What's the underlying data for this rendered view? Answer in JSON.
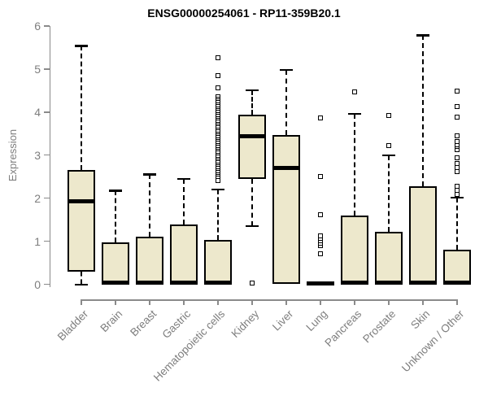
{
  "chart_data": {
    "type": "box",
    "title": "ENSG00000254061 - RP11-359B20.1",
    "ylabel": "Expression",
    "xlabel": "",
    "ylim": [
      0,
      6
    ],
    "yticks": [
      0,
      1,
      2,
      3,
      4,
      5,
      6
    ],
    "grid": false,
    "legend": "none",
    "colors": {
      "box_fill": "#EDE8CC",
      "box_border": "#000000",
      "median": "#000000",
      "whisker": "#000000",
      "axis_line": "#8a8a8a",
      "axis_text": "#7e7e7e",
      "title_text": "#000000",
      "background": "#ffffff"
    },
    "categories": [
      "Bladder",
      "Brain",
      "Breast",
      "Gastric",
      "Hematopoietic cells",
      "Kidney",
      "Liver",
      "Lung",
      "Pancreas",
      "Prostate",
      "Skin",
      "Unknown / Other"
    ],
    "series": [
      {
        "label": "Bladder",
        "min": 0,
        "q1": 0.29,
        "median": 1.92,
        "q3": 2.65,
        "max": 5.54,
        "outliers": []
      },
      {
        "label": "Brain",
        "min": 0,
        "q1": 0,
        "median": 0.03,
        "q3": 0.98,
        "max": 2.18,
        "outliers": []
      },
      {
        "label": "Breast",
        "min": 0,
        "q1": 0,
        "median": 0.03,
        "q3": 1.11,
        "max": 2.56,
        "outliers": []
      },
      {
        "label": "Gastric",
        "min": 0,
        "q1": 0,
        "median": 0.03,
        "q3": 1.39,
        "max": 2.45,
        "outliers": []
      },
      {
        "label": "Hematopoietic cells",
        "min": 0,
        "q1": 0,
        "median": 0.03,
        "q3": 1.03,
        "max": 2.21,
        "outliers": [
          4.56,
          4.84,
          5.25
        ],
        "outlier_dense": {
          "from": 2.39,
          "to": 4.34,
          "step": 0.045
        }
      },
      {
        "label": "Kidney",
        "min": 1.36,
        "q1": 2.45,
        "median": 3.44,
        "q3": 3.94,
        "max": 4.51,
        "outliers": [
          0.02
        ]
      },
      {
        "label": "Liver",
        "min": 0,
        "q1": 0,
        "median": 2.71,
        "q3": 3.47,
        "max": 4.98,
        "outliers": []
      },
      {
        "label": "Lung",
        "min": 0,
        "q1": 0,
        "median": 0.02,
        "q3": 0.04,
        "max": 0.04,
        "outliers": [
          0.7,
          0.88,
          0.94,
          1.0,
          1.06,
          1.12,
          1.6,
          2.5,
          3.85
        ]
      },
      {
        "label": "Pancreas",
        "min": 0,
        "q1": 0,
        "median": 0.03,
        "q3": 1.6,
        "max": 3.96,
        "outliers": [
          4.46
        ]
      },
      {
        "label": "Prostate",
        "min": 0,
        "q1": 0,
        "median": 0.03,
        "q3": 1.22,
        "max": 3.0,
        "outliers": [
          3.22,
          3.91
        ]
      },
      {
        "label": "Skin",
        "min": 0,
        "q1": 0,
        "median": 0.03,
        "q3": 2.27,
        "max": 5.79,
        "outliers": []
      },
      {
        "label": "Unknown / Other",
        "min": 0,
        "q1": 0,
        "median": 0.03,
        "q3": 0.8,
        "max": 2.02,
        "outliers": [
          2.07,
          2.18,
          2.26,
          2.6,
          2.71,
          2.79,
          2.92,
          3.11,
          3.19,
          3.24,
          3.3,
          3.44,
          3.87,
          4.12,
          4.48
        ]
      }
    ]
  }
}
